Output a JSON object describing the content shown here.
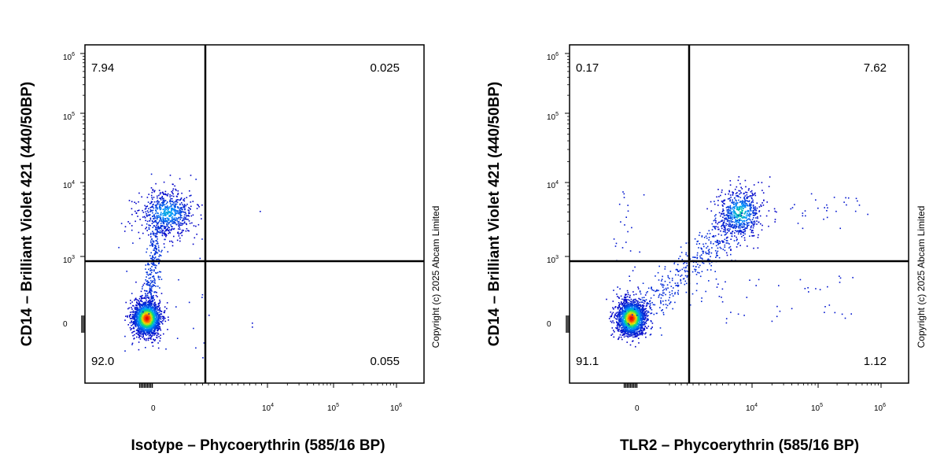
{
  "chart_data": [
    {
      "type": "scatter",
      "xlabel": "Isotype – Phycoerythrin (585/16 BP)",
      "ylabel": "CD14 – Brilliant Violet 421  (440/50BP)",
      "x_scale": "biexponential",
      "y_scale": "biexponential",
      "x_ticks": [
        "0",
        "10^4",
        "10^5",
        "10^6"
      ],
      "y_ticks": [
        "0",
        "10^3",
        "10^4",
        "10^5",
        "10^6"
      ],
      "gates": {
        "x": 1500,
        "y": 900
      },
      "quadrants": {
        "top_left": "7.94",
        "top_right": "0.025",
        "bottom_left": "92.0",
        "bottom_right": "0.055"
      },
      "copyright": "Copyright (c) 2025 Abcam Limited",
      "populations": [
        {
          "center": [
            0,
            0
          ],
          "share": 0.92,
          "colormap": "density"
        },
        {
          "center": [
            0,
            3500
          ],
          "share": 0.0794
        }
      ]
    },
    {
      "type": "scatter",
      "xlabel": "TLR2 – Phycoerythrin (585/16 BP)",
      "ylabel": "CD14 – Brilliant Violet 421  (440/50BP)",
      "x_scale": "biexponential",
      "y_scale": "biexponential",
      "x_ticks": [
        "0",
        "10^4",
        "10^5",
        "10^6"
      ],
      "y_ticks": [
        "0",
        "10^3",
        "10^4",
        "10^5",
        "10^6"
      ],
      "gates": {
        "x": 1500,
        "y": 900
      },
      "quadrants": {
        "top_left": "0.17",
        "top_right": "7.62",
        "bottom_left": "91.1",
        "bottom_right": "1.12"
      },
      "copyright": "Copyright (c) 2025 Abcam Limited",
      "populations": [
        {
          "center": [
            0,
            0
          ],
          "share": 0.911,
          "colormap": "density"
        },
        {
          "center": [
            8000,
            3500
          ],
          "share": 0.0762
        }
      ]
    }
  ]
}
